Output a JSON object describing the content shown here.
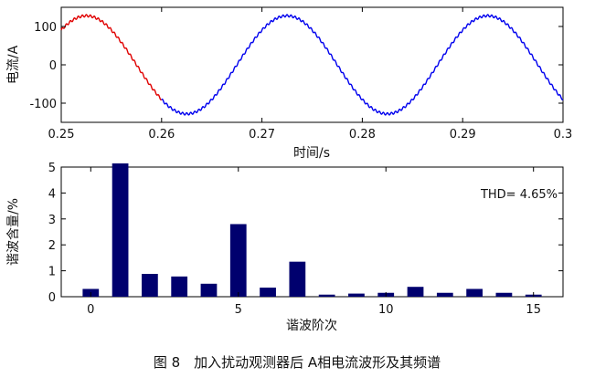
{
  "caption": "图 8　加入扰动观测器后 A相电流波形及其频谱",
  "chart_data": [
    {
      "type": "line",
      "xlabel": "时间/s",
      "ylabel": "电流/A",
      "xlim": [
        0.25,
        0.3
      ],
      "ylim": [
        -150,
        150
      ],
      "xticks": [
        "0.25",
        "0.26",
        "0.27",
        "0.28",
        "0.29",
        "0.3"
      ],
      "yticks": [
        "-100",
        "0",
        "100"
      ],
      "grid": false,
      "waveform": {
        "frequency_hz": 50,
        "amplitude_a": 128,
        "peak_time_s": 0.2525,
        "red_segment_end_s": 0.26,
        "colors": {
          "early": "#e00000",
          "main": "#0000ee"
        }
      }
    },
    {
      "type": "bar",
      "xlabel": "谐波阶次",
      "ylabel": "谐波含量/%",
      "xlim": [
        -1,
        16
      ],
      "ylim": [
        0,
        5
      ],
      "xticks": [
        "0",
        "5",
        "10",
        "15"
      ],
      "yticks": [
        "0",
        "1",
        "2",
        "3",
        "4",
        "5"
      ],
      "grid": false,
      "annotation": "THD= 4.65%",
      "categories": [
        0,
        1,
        2,
        3,
        4,
        5,
        6,
        7,
        8,
        9,
        10,
        11,
        12,
        13,
        14,
        15
      ],
      "values": [
        0.3,
        5.35,
        0.88,
        0.78,
        0.5,
        2.8,
        0.35,
        1.35,
        0.08,
        0.12,
        0.15,
        0.38,
        0.15,
        0.3,
        0.15,
        0.08
      ],
      "bar_color": "#00006e"
    }
  ]
}
